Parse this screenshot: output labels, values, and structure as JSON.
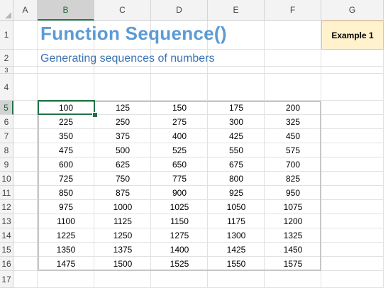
{
  "columns": [
    "A",
    "B",
    "C",
    "D",
    "E",
    "F",
    "G"
  ],
  "rows": [
    "1",
    "2",
    "3",
    "4",
    "5",
    "6",
    "7",
    "8",
    "9",
    "10",
    "11",
    "12",
    "13",
    "14",
    "15",
    "16",
    "17"
  ],
  "selected_column": "B",
  "selected_row": "5",
  "title": "Function Sequence()",
  "subtitle": "Generating sequences of numbers",
  "example_label": "Example 1",
  "table": [
    [
      "100",
      "125",
      "150",
      "175",
      "200"
    ],
    [
      "225",
      "250",
      "275",
      "300",
      "325"
    ],
    [
      "350",
      "375",
      "400",
      "425",
      "450"
    ],
    [
      "475",
      "500",
      "525",
      "550",
      "575"
    ],
    [
      "600",
      "625",
      "650",
      "675",
      "700"
    ],
    [
      "725",
      "750",
      "775",
      "800",
      "825"
    ],
    [
      "850",
      "875",
      "900",
      "925",
      "950"
    ],
    [
      "975",
      "1000",
      "1025",
      "1050",
      "1075"
    ],
    [
      "1100",
      "1125",
      "1150",
      "1175",
      "1200"
    ],
    [
      "1225",
      "1250",
      "1275",
      "1300",
      "1325"
    ],
    [
      "1350",
      "1375",
      "1400",
      "1425",
      "1450"
    ],
    [
      "1475",
      "1500",
      "1525",
      "1550",
      "1575"
    ]
  ],
  "colors": {
    "title": "#5b9bd5",
    "subtitle": "#3a73b4",
    "example_fill": "#fff2cc",
    "example_border": "#f4c36c",
    "selection": "#217346"
  }
}
